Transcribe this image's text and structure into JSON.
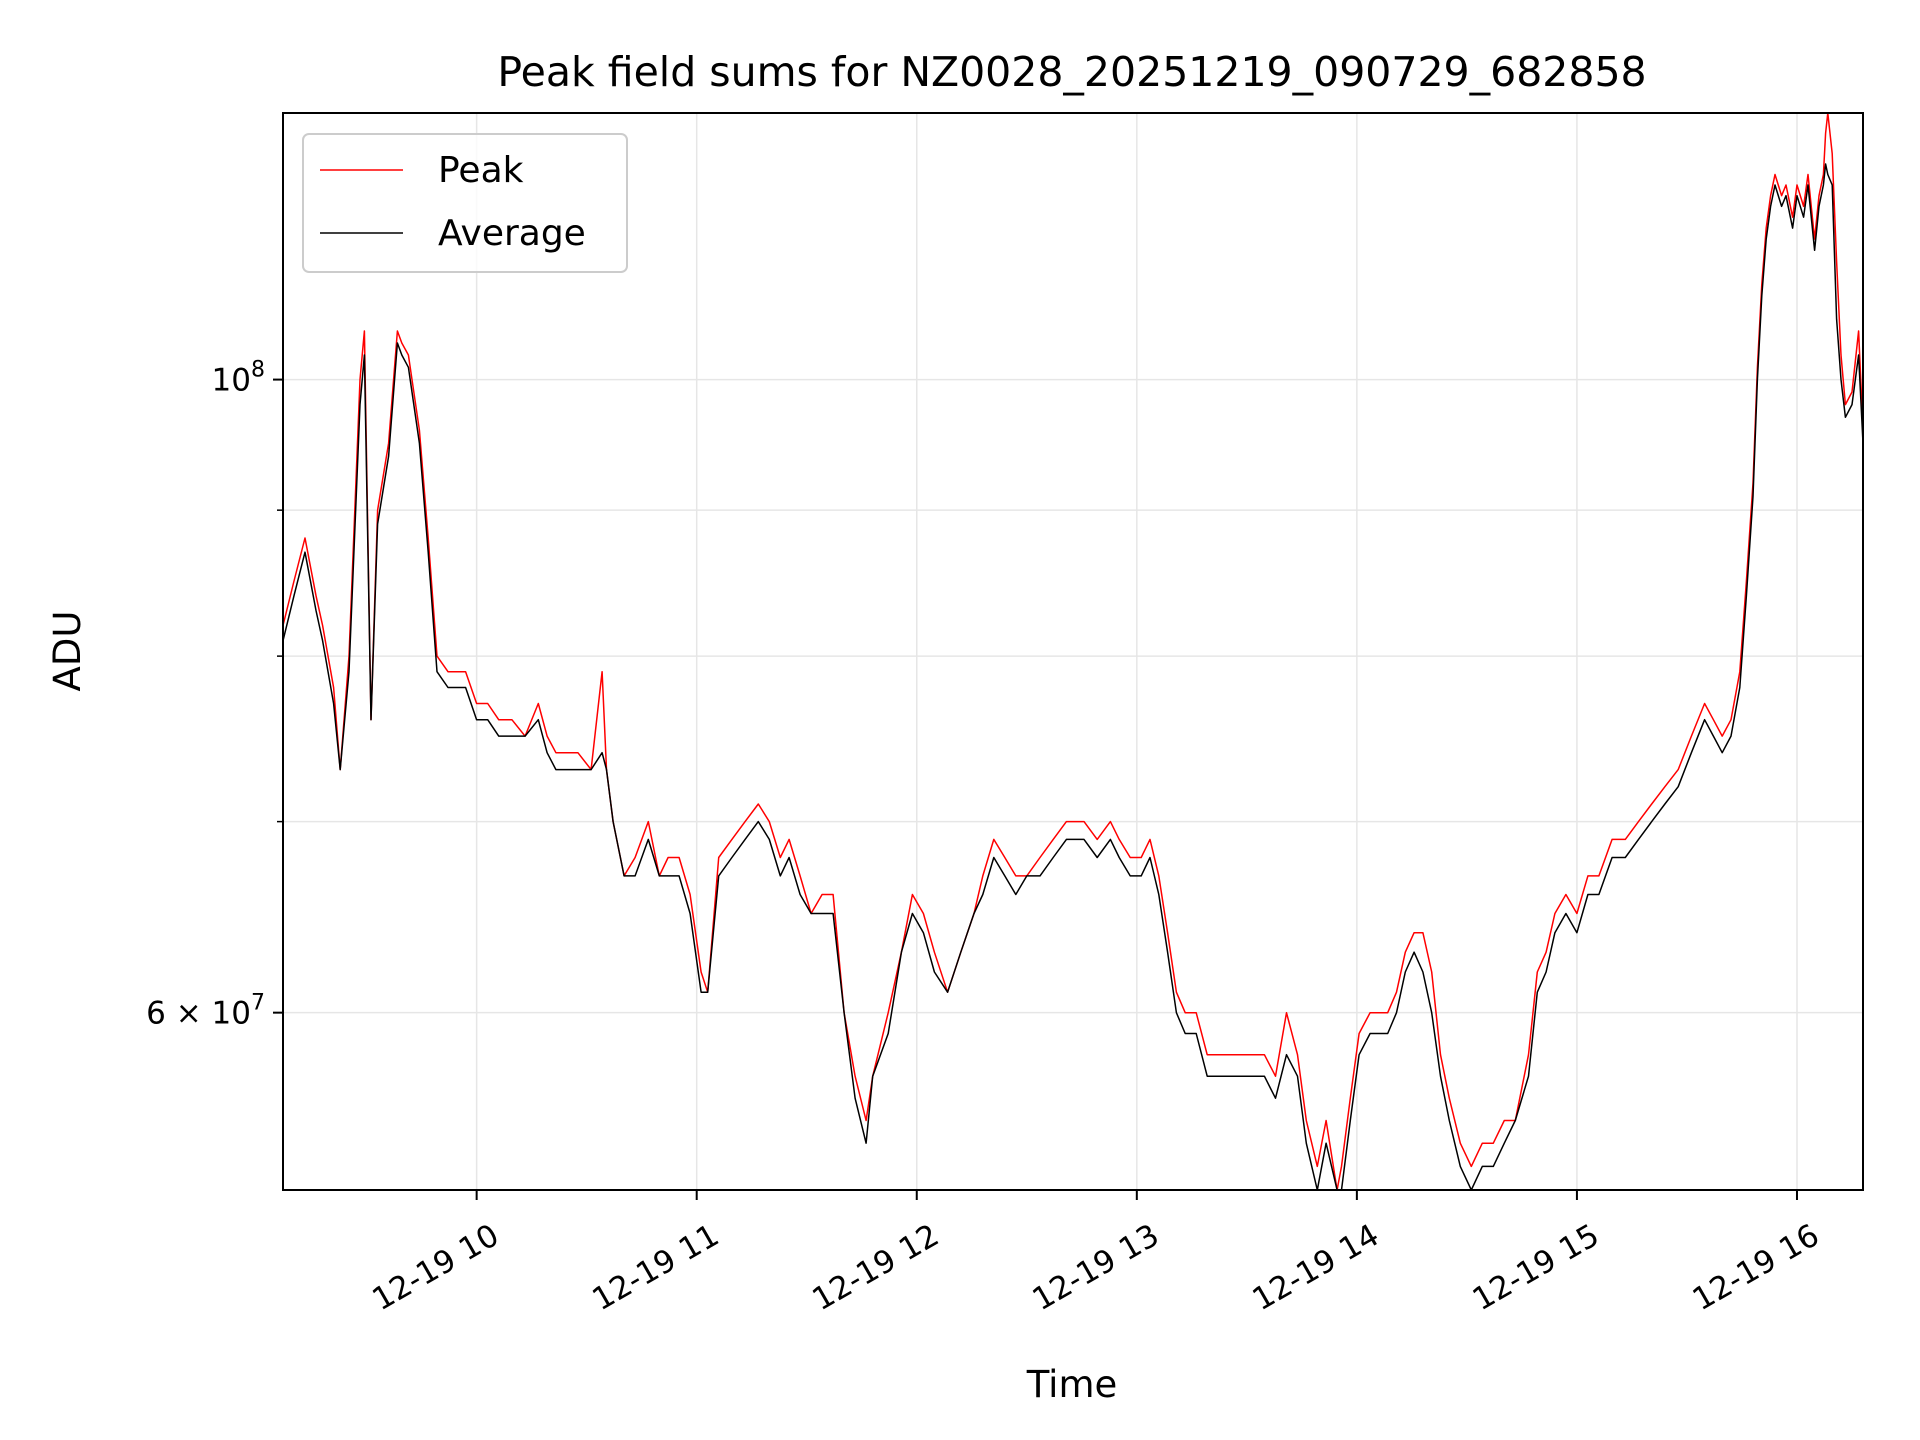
{
  "chart_data": {
    "type": "line",
    "title": "Peak field sums for NZ0028_20251219_090729_682858",
    "xlabel": "Time",
    "ylabel": "ADU",
    "yscale": "log",
    "xlim": [
      9.12,
      16.3
    ],
    "ylim": [
      52000000,
      124000000
    ],
    "grid": true,
    "legend": "upper left",
    "x_ticks": [
      {
        "value": 10,
        "label": "12-19 10"
      },
      {
        "value": 11,
        "label": "12-19 11"
      },
      {
        "value": 12,
        "label": "12-19 12"
      },
      {
        "value": 13,
        "label": "12-19 13"
      },
      {
        "value": 14,
        "label": "12-19 14"
      },
      {
        "value": 15,
        "label": "12-19 15"
      },
      {
        "value": 16,
        "label": "12-19 16"
      }
    ],
    "y_ticks_major": [
      {
        "value": 60000000,
        "base": "6 × 10",
        "exp": "7"
      },
      {
        "value": 100000000,
        "base": "10",
        "exp": "8"
      }
    ],
    "y_ticks_minor": [
      70000000,
      80000000,
      90000000
    ],
    "colors": {
      "peak": "#ff0000",
      "average": "#000000"
    },
    "series": [
      {
        "name": "Peak",
        "color": "#ff0000",
        "x": [
          9.12,
          9.17,
          9.22,
          9.27,
          9.3,
          9.35,
          9.38,
          9.42,
          9.47,
          9.49,
          9.52,
          9.55,
          9.6,
          9.64,
          9.66,
          9.69,
          9.74,
          9.78,
          9.82,
          9.87,
          9.95,
          10.0,
          10.05,
          10.1,
          10.16,
          10.22,
          10.28,
          10.32,
          10.36,
          10.4,
          10.46,
          10.52,
          10.57,
          10.59,
          10.62,
          10.67,
          10.72,
          10.78,
          10.83,
          10.87,
          10.92,
          10.97,
          11.02,
          11.05,
          11.1,
          11.16,
          11.22,
          11.28,
          11.33,
          11.38,
          11.42,
          11.47,
          11.52,
          11.57,
          11.62,
          11.67,
          11.72,
          11.77,
          11.8,
          11.87,
          11.93,
          11.98,
          12.03,
          12.08,
          12.14,
          12.2,
          12.26,
          12.3,
          12.35,
          12.4,
          12.45,
          12.5,
          12.56,
          12.62,
          12.68,
          12.72,
          12.76,
          12.82,
          12.88,
          12.92,
          12.97,
          13.02,
          13.06,
          13.1,
          13.14,
          13.18,
          13.22,
          13.27,
          13.32,
          13.38,
          13.43,
          13.48,
          13.53,
          13.58,
          13.63,
          13.68,
          13.73,
          13.77,
          13.82,
          13.86,
          13.91,
          13.93,
          13.97,
          14.01,
          14.06,
          14.1,
          14.14,
          14.18,
          14.22,
          14.26,
          14.3,
          14.34,
          14.38,
          14.42,
          14.47,
          14.52,
          14.57,
          14.62,
          14.67,
          14.72,
          14.78,
          14.82,
          14.86,
          14.9,
          14.95,
          15.0,
          15.05,
          15.1,
          15.16,
          15.22,
          15.28,
          15.34,
          15.4,
          15.46,
          15.52,
          15.58,
          15.62,
          15.66,
          15.7,
          15.74,
          15.77,
          15.8,
          15.82,
          15.84,
          15.86,
          15.88,
          15.9,
          15.93,
          15.95,
          15.98,
          16.0,
          16.03,
          16.05,
          16.08,
          16.1,
          16.12,
          16.13,
          16.14,
          16.16,
          16.18,
          16.2,
          16.22,
          16.25,
          16.28,
          16.3
        ],
        "y": [
          82000000,
          85000000,
          88000000,
          84000000,
          82000000,
          78000000,
          73000000,
          80000000,
          100000000,
          104000000,
          76000000,
          90000000,
          95000000,
          104000000,
          103000000,
          102000000,
          96000000,
          88000000,
          80000000,
          79000000,
          79000000,
          77000000,
          77000000,
          76000000,
          76000000,
          75000000,
          77000000,
          75000000,
          74000000,
          74000000,
          74000000,
          73000000,
          79000000,
          73000000,
          70000000,
          67000000,
          68000000,
          70000000,
          67000000,
          68000000,
          68000000,
          66000000,
          62000000,
          61000000,
          68000000,
          69000000,
          70000000,
          71000000,
          70000000,
          68000000,
          69000000,
          67000000,
          65000000,
          66000000,
          66000000,
          60000000,
          57000000,
          55000000,
          57000000,
          60000000,
          63000000,
          66000000,
          65000000,
          63000000,
          61000000,
          63000000,
          65000000,
          67000000,
          69000000,
          68000000,
          67000000,
          67000000,
          68000000,
          69000000,
          70000000,
          70000000,
          70000000,
          69000000,
          70000000,
          69000000,
          68000000,
          68000000,
          69000000,
          67000000,
          64000000,
          61000000,
          60000000,
          60000000,
          58000000,
          58000000,
          58000000,
          58000000,
          58000000,
          58000000,
          57000000,
          60000000,
          58000000,
          55000000,
          53000000,
          55000000,
          52000000,
          53000000,
          56000000,
          59000000,
          60000000,
          60000000,
          60000000,
          61000000,
          63000000,
          64000000,
          64000000,
          62000000,
          58000000,
          56000000,
          54000000,
          53000000,
          54000000,
          54000000,
          55000000,
          55000000,
          58000000,
          62000000,
          63000000,
          65000000,
          66000000,
          65000000,
          67000000,
          67000000,
          69000000,
          69000000,
          70000000,
          71000000,
          72000000,
          73000000,
          75000000,
          77000000,
          76000000,
          75000000,
          76000000,
          79000000,
          85000000,
          92000000,
          101000000,
          108000000,
          113000000,
          116000000,
          118000000,
          116000000,
          117000000,
          114000000,
          117000000,
          115000000,
          118000000,
          112000000,
          116000000,
          118000000,
          122000000,
          124000000,
          120000000,
          110000000,
          102000000,
          98000000,
          99000000,
          104000000,
          96000000
        ]
      },
      {
        "name": "Average",
        "color": "#000000",
        "x": [
          9.12,
          9.17,
          9.22,
          9.27,
          9.3,
          9.35,
          9.38,
          9.42,
          9.47,
          9.49,
          9.52,
          9.55,
          9.6,
          9.64,
          9.66,
          9.69,
          9.74,
          9.78,
          9.82,
          9.87,
          9.95,
          10.0,
          10.05,
          10.1,
          10.16,
          10.22,
          10.28,
          10.32,
          10.36,
          10.4,
          10.46,
          10.52,
          10.57,
          10.59,
          10.62,
          10.67,
          10.72,
          10.78,
          10.83,
          10.87,
          10.92,
          10.97,
          11.02,
          11.05,
          11.1,
          11.16,
          11.22,
          11.28,
          11.33,
          11.38,
          11.42,
          11.47,
          11.52,
          11.57,
          11.62,
          11.67,
          11.72,
          11.77,
          11.8,
          11.87,
          11.93,
          11.98,
          12.03,
          12.08,
          12.14,
          12.2,
          12.26,
          12.3,
          12.35,
          12.4,
          12.45,
          12.5,
          12.56,
          12.62,
          12.68,
          12.72,
          12.76,
          12.82,
          12.88,
          12.92,
          12.97,
          13.02,
          13.06,
          13.1,
          13.14,
          13.18,
          13.22,
          13.27,
          13.32,
          13.38,
          13.43,
          13.48,
          13.53,
          13.58,
          13.63,
          13.68,
          13.73,
          13.77,
          13.82,
          13.86,
          13.91,
          13.93,
          13.97,
          14.01,
          14.06,
          14.1,
          14.14,
          14.18,
          14.22,
          14.26,
          14.3,
          14.34,
          14.38,
          14.42,
          14.47,
          14.52,
          14.57,
          14.62,
          14.67,
          14.72,
          14.78,
          14.82,
          14.86,
          14.9,
          14.95,
          15.0,
          15.05,
          15.1,
          15.16,
          15.22,
          15.28,
          15.34,
          15.4,
          15.46,
          15.52,
          15.58,
          15.62,
          15.66,
          15.7,
          15.74,
          15.77,
          15.8,
          15.82,
          15.84,
          15.86,
          15.88,
          15.9,
          15.93,
          15.95,
          15.98,
          16.0,
          16.03,
          16.05,
          16.08,
          16.1,
          16.12,
          16.13,
          16.14,
          16.16,
          16.18,
          16.2,
          16.22,
          16.25,
          16.28,
          16.3
        ],
        "y": [
          81000000,
          84000000,
          87000000,
          83000000,
          81000000,
          77000000,
          73000000,
          79000000,
          98000000,
          102000000,
          76000000,
          89000000,
          94000000,
          103000000,
          102000000,
          101000000,
          95000000,
          87000000,
          79000000,
          78000000,
          78000000,
          76000000,
          76000000,
          75000000,
          75000000,
          75000000,
          76000000,
          74000000,
          73000000,
          73000000,
          73000000,
          73000000,
          74000000,
          73000000,
          70000000,
          67000000,
          67000000,
          69000000,
          67000000,
          67000000,
          67000000,
          65000000,
          61000000,
          61000000,
          67000000,
          68000000,
          69000000,
          70000000,
          69000000,
          67000000,
          68000000,
          66000000,
          65000000,
          65000000,
          65000000,
          60000000,
          56000000,
          54000000,
          57000000,
          59000000,
          63000000,
          65000000,
          64000000,
          62000000,
          61000000,
          63000000,
          65000000,
          66000000,
          68000000,
          67000000,
          66000000,
          67000000,
          67000000,
          68000000,
          69000000,
          69000000,
          69000000,
          68000000,
          69000000,
          68000000,
          67000000,
          67000000,
          68000000,
          66000000,
          63000000,
          60000000,
          59000000,
          59000000,
          57000000,
          57000000,
          57000000,
          57000000,
          57000000,
          57000000,
          56000000,
          58000000,
          57000000,
          54000000,
          52000000,
          54000000,
          52000000,
          52000000,
          55000000,
          58000000,
          59000000,
          59000000,
          59000000,
          60000000,
          62000000,
          63000000,
          62000000,
          60000000,
          57000000,
          55000000,
          53000000,
          52000000,
          53000000,
          53000000,
          54000000,
          55000000,
          57000000,
          61000000,
          62000000,
          64000000,
          65000000,
          64000000,
          66000000,
          66000000,
          68000000,
          68000000,
          69000000,
          70000000,
          71000000,
          72000000,
          74000000,
          76000000,
          75000000,
          74000000,
          75000000,
          78000000,
          84000000,
          91000000,
          100000000,
          107000000,
          112000000,
          115000000,
          117000000,
          115000000,
          116000000,
          113000000,
          116000000,
          114000000,
          117000000,
          111000000,
          115000000,
          117000000,
          119000000,
          118000000,
          117000000,
          105000000,
          100000000,
          97000000,
          98000000,
          102000000,
          95000000
        ]
      }
    ]
  }
}
